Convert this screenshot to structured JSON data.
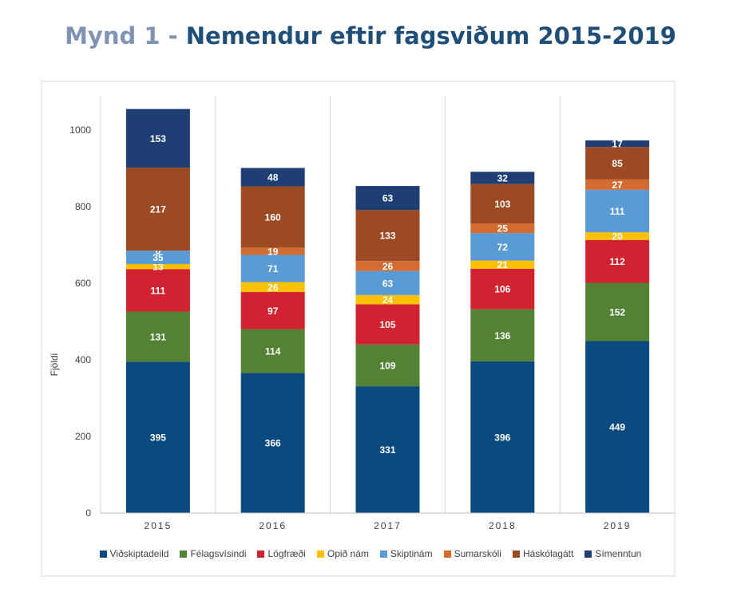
{
  "title": {
    "prefix": "Mynd 1 - ",
    "main": "Nemendur eftir fagsviðum 2015-2019"
  },
  "chart_data": {
    "type": "bar",
    "stacked": true,
    "categories": [
      "2015",
      "2016",
      "2017",
      "2018",
      "2019"
    ],
    "ylabel": "Fjöldi",
    "xlabel": "",
    "ylim": [
      0,
      1100
    ],
    "yticks": [
      0,
      200,
      400,
      600,
      800,
      1000
    ],
    "grid": "vertical separators between categories",
    "legend_position": "bottom",
    "series": [
      {
        "name": "Viðskiptadeild",
        "color": "#0b4a7e",
        "values": [
          395,
          366,
          331,
          396,
          449
        ]
      },
      {
        "name": "Félagsvísindi",
        "color": "#548235",
        "values": [
          131,
          114,
          109,
          136,
          152
        ]
      },
      {
        "name": "Lögfræði",
        "color": "#d1232f",
        "values": [
          111,
          97,
          105,
          106,
          112
        ]
      },
      {
        "name": "Opið nám",
        "color": "#ffc000",
        "values": [
          13,
          26,
          24,
          21,
          20
        ]
      },
      {
        "name": "Skiptinám",
        "color": "#5b9bd5",
        "values": [
          35,
          71,
          63,
          72,
          111
        ]
      },
      {
        "name": "Sumarskóli",
        "color": "#d46c31",
        "values": [
          0,
          19,
          26,
          25,
          27
        ]
      },
      {
        "name": "Háskólagátt",
        "color": "#9c4a23",
        "values": [
          217,
          160,
          133,
          103,
          85
        ]
      },
      {
        "name": "Símenntun",
        "color": "#1f3f74",
        "values": [
          153,
          48,
          63,
          32,
          17
        ]
      }
    ]
  }
}
